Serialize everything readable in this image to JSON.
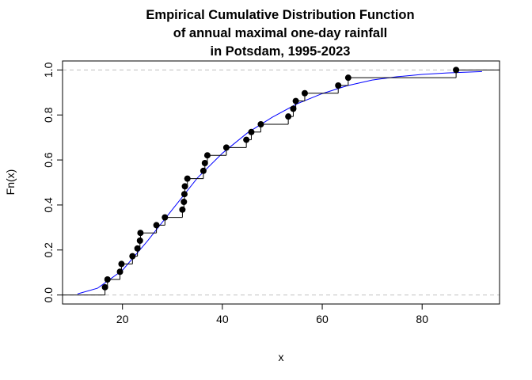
{
  "chart_data": {
    "type": "line",
    "title_lines": [
      "Empirical Cumulative Distribution Function",
      "of annual maximal one-day rainfall",
      "in Potsdam, 1995-2023"
    ],
    "xlabel": "x",
    "ylabel": "Fn(x)",
    "xlim": [
      8,
      95.5
    ],
    "ylim": [
      -0.04,
      1.04
    ],
    "x_ticks": [
      20,
      40,
      60,
      80
    ],
    "y_ticks": [
      0.0,
      0.2,
      0.4,
      0.6,
      0.8,
      1.0
    ],
    "y_tick_labels": [
      "0.0",
      "0.2",
      "0.4",
      "0.6",
      "0.8",
      "1.0"
    ],
    "reference_lines": [
      0,
      1
    ],
    "grid": false,
    "series": [
      {
        "style": "step-points",
        "color": "#000000",
        "x": [
          16.5,
          17.0,
          19.5,
          19.8,
          22.0,
          23.0,
          23.5,
          23.6,
          26.8,
          28.5,
          32.0,
          32.3,
          32.4,
          32.5,
          33.0,
          36.2,
          36.5,
          37.0,
          40.8,
          44.8,
          45.8,
          47.7,
          53.2,
          54.2,
          54.7,
          56.5,
          63.2,
          65.2,
          86.8
        ],
        "y": [
          0.0345,
          0.069,
          0.1034,
          0.1379,
          0.1724,
          0.2069,
          0.2414,
          0.2759,
          0.3103,
          0.3448,
          0.3793,
          0.4138,
          0.4483,
          0.4828,
          0.5172,
          0.5517,
          0.5862,
          0.6207,
          0.6552,
          0.6897,
          0.7241,
          0.7586,
          0.7931,
          0.8276,
          0.8621,
          0.8966,
          0.931,
          0.9655,
          1.0
        ]
      },
      {
        "style": "smooth-line",
        "color": "#0000ff",
        "x": [
          11,
          15,
          20,
          25,
          30,
          35,
          40,
          45,
          50,
          55,
          60,
          65,
          70,
          75,
          80,
          85,
          92
        ],
        "y": [
          0.005,
          0.03,
          0.11,
          0.24,
          0.38,
          0.52,
          0.63,
          0.72,
          0.79,
          0.85,
          0.895,
          0.93,
          0.955,
          0.97,
          0.98,
          0.987,
          0.993
        ]
      }
    ]
  }
}
